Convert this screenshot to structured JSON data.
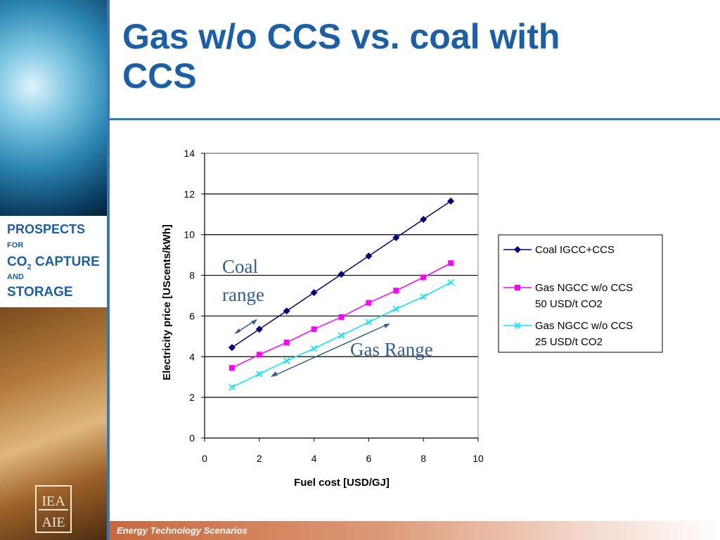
{
  "slide": {
    "title_line1": "Gas w/o CCS vs. coal with",
    "title_line2": "CCS",
    "footer": "Energy Technology Scenarios"
  },
  "sidebar": {
    "line1": "PROSPECTS",
    "line2": "FOR",
    "line3_a": "CO",
    "line3_sub": "2",
    "line3_b": " CAPTURE",
    "line4": "AND",
    "line5": "STORAGE",
    "logo_top": "IEA",
    "logo_bottom": "AIE"
  },
  "annotations": {
    "coal_line1": "Coal",
    "coal_line2": "range",
    "gas": "Gas Range"
  },
  "colors": {
    "accent": "#1a5fa8",
    "rule": "#3a78b5",
    "annotation": "#2f5f8f"
  },
  "chart_data": {
    "type": "line",
    "xlabel": "Fuel cost [USD/GJ]",
    "ylabel": "Electricity price [UScents/kWh]",
    "xlim": [
      0,
      10
    ],
    "ylim": [
      0,
      14
    ],
    "xticks": [
      0,
      2,
      4,
      6,
      8,
      10
    ],
    "yticks": [
      0,
      2,
      4,
      6,
      8,
      10,
      12,
      14
    ],
    "grid": "horizontal",
    "legend_position": "right",
    "x": [
      1,
      2,
      3,
      4,
      5,
      6,
      7,
      8,
      9
    ],
    "series": [
      {
        "name": "Coal IGCC+CCS",
        "legend_lines": [
          "Coal IGCC+CCS"
        ],
        "color": "#000080",
        "marker": "diamond",
        "values": [
          4.45,
          5.35,
          6.25,
          7.15,
          8.05,
          8.95,
          9.85,
          10.75,
          11.65
        ]
      },
      {
        "name": "Gas NGCC w/o CCS 50 USD/t CO2",
        "legend_lines": [
          "Gas NGCC w/o CCS",
          "50 USD/t CO2"
        ],
        "color": "#ff00ff",
        "marker": "square",
        "values": [
          3.45,
          4.1,
          4.7,
          5.35,
          5.95,
          6.65,
          7.25,
          7.9,
          8.6
        ]
      },
      {
        "name": "Gas NGCC w/o CCS 25 USD/t CO2",
        "legend_lines": [
          "Gas NGCC w/o CCS",
          "25 USD/t CO2"
        ],
        "color": "#00e5ff",
        "marker": "x",
        "values": [
          2.5,
          3.15,
          3.8,
          4.4,
          5.05,
          5.7,
          6.35,
          6.95,
          7.65
        ]
      }
    ]
  }
}
